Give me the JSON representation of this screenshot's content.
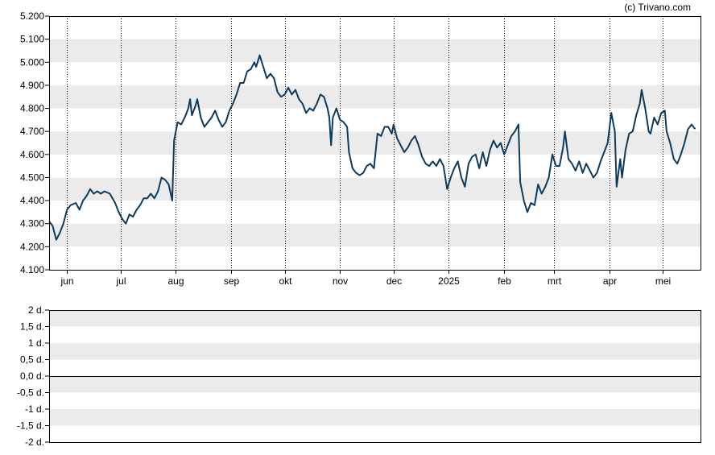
{
  "credit": "(c) Trivano.com",
  "colors": {
    "line": "#0e3a5c",
    "band": "#ebebeb",
    "axis": "#000000",
    "grid": "#000000"
  },
  "chart_data": [
    {
      "type": "line",
      "title": "",
      "xlabel": "",
      "ylabel": "",
      "ylim": [
        4.1,
        5.2
      ],
      "grid": "vertical dotted month lines, horizontal alternating bands",
      "yticks": [
        {
          "v": 4.1,
          "label": "4.100"
        },
        {
          "v": 4.2,
          "label": "4.200"
        },
        {
          "v": 4.3,
          "label": "4.300"
        },
        {
          "v": 4.4,
          "label": "4.400"
        },
        {
          "v": 4.5,
          "label": "4.500"
        },
        {
          "v": 4.6,
          "label": "4.600"
        },
        {
          "v": 4.7,
          "label": "4.700"
        },
        {
          "v": 4.8,
          "label": "4.800"
        },
        {
          "v": 4.9,
          "label": "4.900"
        },
        {
          "v": 5.0,
          "label": "5.000"
        },
        {
          "v": 5.1,
          "label": "5.100"
        },
        {
          "v": 5.2,
          "label": "5.200"
        }
      ],
      "xticks": [
        {
          "d": "2024-06-01",
          "label": "jun"
        },
        {
          "d": "2024-07-01",
          "label": "jul"
        },
        {
          "d": "2024-08-01",
          "label": "aug"
        },
        {
          "d": "2024-09-01",
          "label": "sep"
        },
        {
          "d": "2024-10-01",
          "label": "okt"
        },
        {
          "d": "2024-11-01",
          "label": "nov"
        },
        {
          "d": "2024-12-01",
          "label": "dec"
        },
        {
          "d": "2025-01-01",
          "label": "2025"
        },
        {
          "d": "2025-02-01",
          "label": "feb"
        },
        {
          "d": "2025-03-01",
          "label": "mrt"
        },
        {
          "d": "2025-04-01",
          "label": "apr"
        },
        {
          "d": "2025-05-01",
          "label": "mei"
        }
      ],
      "xrange": [
        "2024-05-22",
        "2025-05-22"
      ],
      "series": [
        {
          "points": [
            [
              "2024-05-22",
              4.31
            ],
            [
              "2024-05-24",
              4.29
            ],
            [
              "2024-05-26",
              4.23
            ],
            [
              "2024-05-28",
              4.26
            ],
            [
              "2024-05-30",
              4.3
            ],
            [
              "2024-06-01",
              4.36
            ],
            [
              "2024-06-03",
              4.38
            ],
            [
              "2024-06-06",
              4.39
            ],
            [
              "2024-06-08",
              4.36
            ],
            [
              "2024-06-10",
              4.4
            ],
            [
              "2024-06-12",
              4.42
            ],
            [
              "2024-06-14",
              4.45
            ],
            [
              "2024-06-16",
              4.43
            ],
            [
              "2024-06-18",
              4.44
            ],
            [
              "2024-06-20",
              4.43
            ],
            [
              "2024-06-22",
              4.44
            ],
            [
              "2024-06-25",
              4.43
            ],
            [
              "2024-06-28",
              4.39
            ],
            [
              "2024-06-30",
              4.35
            ],
            [
              "2024-07-02",
              4.32
            ],
            [
              "2024-07-04",
              4.3
            ],
            [
              "2024-07-06",
              4.34
            ],
            [
              "2024-07-08",
              4.33
            ],
            [
              "2024-07-10",
              4.36
            ],
            [
              "2024-07-12",
              4.38
            ],
            [
              "2024-07-14",
              4.41
            ],
            [
              "2024-07-16",
              4.41
            ],
            [
              "2024-07-18",
              4.43
            ],
            [
              "2024-07-20",
              4.41
            ],
            [
              "2024-07-22",
              4.44
            ],
            [
              "2024-07-24",
              4.5
            ],
            [
              "2024-07-26",
              4.49
            ],
            [
              "2024-07-28",
              4.47
            ],
            [
              "2024-07-30",
              4.4
            ],
            [
              "2024-07-31",
              4.66
            ],
            [
              "2024-08-02",
              4.74
            ],
            [
              "2024-08-04",
              4.73
            ],
            [
              "2024-08-06",
              4.76
            ],
            [
              "2024-08-08",
              4.8
            ],
            [
              "2024-08-09",
              4.84
            ],
            [
              "2024-08-10",
              4.77
            ],
            [
              "2024-08-12",
              4.81
            ],
            [
              "2024-08-13",
              4.84
            ],
            [
              "2024-08-15",
              4.76
            ],
            [
              "2024-08-17",
              4.72
            ],
            [
              "2024-08-19",
              4.74
            ],
            [
              "2024-08-21",
              4.76
            ],
            [
              "2024-08-23",
              4.79
            ],
            [
              "2024-08-25",
              4.75
            ],
            [
              "2024-08-27",
              4.72
            ],
            [
              "2024-08-29",
              4.74
            ],
            [
              "2024-08-31",
              4.79
            ],
            [
              "2024-09-02",
              4.82
            ],
            [
              "2024-09-04",
              4.86
            ],
            [
              "2024-09-06",
              4.91
            ],
            [
              "2024-09-08",
              4.91
            ],
            [
              "2024-09-10",
              4.96
            ],
            [
              "2024-09-12",
              4.97
            ],
            [
              "2024-09-14",
              5.0
            ],
            [
              "2024-09-15",
              4.98
            ],
            [
              "2024-09-17",
              5.03
            ],
            [
              "2024-09-19",
              4.98
            ],
            [
              "2024-09-21",
              4.93
            ],
            [
              "2024-09-23",
              4.95
            ],
            [
              "2024-09-25",
              4.93
            ],
            [
              "2024-09-27",
              4.87
            ],
            [
              "2024-09-29",
              4.85
            ],
            [
              "2024-10-01",
              4.86
            ],
            [
              "2024-10-03",
              4.89
            ],
            [
              "2024-10-05",
              4.86
            ],
            [
              "2024-10-07",
              4.88
            ],
            [
              "2024-10-09",
              4.84
            ],
            [
              "2024-10-11",
              4.82
            ],
            [
              "2024-10-13",
              4.78
            ],
            [
              "2024-10-15",
              4.8
            ],
            [
              "2024-10-17",
              4.79
            ],
            [
              "2024-10-19",
              4.82
            ],
            [
              "2024-10-21",
              4.86
            ],
            [
              "2024-10-23",
              4.85
            ],
            [
              "2024-10-25",
              4.8
            ],
            [
              "2024-10-26",
              4.76
            ],
            [
              "2024-10-27",
              4.64
            ],
            [
              "2024-10-28",
              4.76
            ],
            [
              "2024-10-30",
              4.8
            ],
            [
              "2024-11-01",
              4.75
            ],
            [
              "2024-11-03",
              4.74
            ],
            [
              "2024-11-05",
              4.72
            ],
            [
              "2024-11-06",
              4.61
            ],
            [
              "2024-11-08",
              4.54
            ],
            [
              "2024-11-10",
              4.52
            ],
            [
              "2024-11-12",
              4.51
            ],
            [
              "2024-11-14",
              4.52
            ],
            [
              "2024-11-16",
              4.55
            ],
            [
              "2024-11-18",
              4.56
            ],
            [
              "2024-11-20",
              4.54
            ],
            [
              "2024-11-22",
              4.69
            ],
            [
              "2024-11-24",
              4.68
            ],
            [
              "2024-11-26",
              4.72
            ],
            [
              "2024-11-28",
              4.72
            ],
            [
              "2024-11-30",
              4.69
            ],
            [
              "2024-12-01",
              4.73
            ],
            [
              "2024-12-03",
              4.67
            ],
            [
              "2024-12-05",
              4.64
            ],
            [
              "2024-12-07",
              4.61
            ],
            [
              "2024-12-09",
              4.63
            ],
            [
              "2024-12-11",
              4.66
            ],
            [
              "2024-12-13",
              4.68
            ],
            [
              "2024-12-15",
              4.64
            ],
            [
              "2024-12-17",
              4.59
            ],
            [
              "2024-12-19",
              4.56
            ],
            [
              "2024-12-21",
              4.55
            ],
            [
              "2024-12-23",
              4.57
            ],
            [
              "2024-12-25",
              4.55
            ],
            [
              "2024-12-27",
              4.58
            ],
            [
              "2024-12-29",
              4.55
            ],
            [
              "2024-12-31",
              4.45
            ],
            [
              "2025-01-02",
              4.5
            ],
            [
              "2025-01-04",
              4.54
            ],
            [
              "2025-01-06",
              4.57
            ],
            [
              "2025-01-08",
              4.5
            ],
            [
              "2025-01-10",
              4.46
            ],
            [
              "2025-01-12",
              4.56
            ],
            [
              "2025-01-14",
              4.59
            ],
            [
              "2025-01-16",
              4.6
            ],
            [
              "2025-01-18",
              4.54
            ],
            [
              "2025-01-20",
              4.61
            ],
            [
              "2025-01-22",
              4.55
            ],
            [
              "2025-01-24",
              4.62
            ],
            [
              "2025-01-26",
              4.66
            ],
            [
              "2025-01-28",
              4.63
            ],
            [
              "2025-01-30",
              4.65
            ],
            [
              "2025-02-01",
              4.6
            ],
            [
              "2025-02-03",
              4.64
            ],
            [
              "2025-02-05",
              4.68
            ],
            [
              "2025-02-07",
              4.7
            ],
            [
              "2025-02-09",
              4.73
            ],
            [
              "2025-02-10",
              4.48
            ],
            [
              "2025-02-12",
              4.4
            ],
            [
              "2025-02-14",
              4.35
            ],
            [
              "2025-02-16",
              4.39
            ],
            [
              "2025-02-18",
              4.38
            ],
            [
              "2025-02-20",
              4.47
            ],
            [
              "2025-02-22",
              4.43
            ],
            [
              "2025-02-24",
              4.46
            ],
            [
              "2025-02-26",
              4.5
            ],
            [
              "2025-02-28",
              4.6
            ],
            [
              "2025-03-02",
              4.55
            ],
            [
              "2025-03-04",
              4.55
            ],
            [
              "2025-03-06",
              4.63
            ],
            [
              "2025-03-07",
              4.7
            ],
            [
              "2025-03-09",
              4.58
            ],
            [
              "2025-03-11",
              4.56
            ],
            [
              "2025-03-13",
              4.53
            ],
            [
              "2025-03-15",
              4.57
            ],
            [
              "2025-03-17",
              4.52
            ],
            [
              "2025-03-19",
              4.56
            ],
            [
              "2025-03-21",
              4.53
            ],
            [
              "2025-03-23",
              4.5
            ],
            [
              "2025-03-25",
              4.52
            ],
            [
              "2025-03-27",
              4.57
            ],
            [
              "2025-03-29",
              4.61
            ],
            [
              "2025-03-31",
              4.65
            ],
            [
              "2025-04-02",
              4.78
            ],
            [
              "2025-04-04",
              4.7
            ],
            [
              "2025-04-05",
              4.46
            ],
            [
              "2025-04-07",
              4.58
            ],
            [
              "2025-04-08",
              4.5
            ],
            [
              "2025-04-10",
              4.62
            ],
            [
              "2025-04-12",
              4.69
            ],
            [
              "2025-04-14",
              4.7
            ],
            [
              "2025-04-16",
              4.77
            ],
            [
              "2025-04-18",
              4.82
            ],
            [
              "2025-04-19",
              4.88
            ],
            [
              "2025-04-21",
              4.8
            ],
            [
              "2025-04-23",
              4.7
            ],
            [
              "2025-04-24",
              4.69
            ],
            [
              "2025-04-26",
              4.76
            ],
            [
              "2025-04-28",
              4.73
            ],
            [
              "2025-04-30",
              4.78
            ],
            [
              "2025-05-02",
              4.79
            ],
            [
              "2025-05-03",
              4.7
            ],
            [
              "2025-05-05",
              4.65
            ],
            [
              "2025-05-07",
              4.58
            ],
            [
              "2025-05-09",
              4.56
            ],
            [
              "2025-05-11",
              4.6
            ],
            [
              "2025-05-13",
              4.65
            ],
            [
              "2025-05-15",
              4.71
            ],
            [
              "2025-05-17",
              4.73
            ],
            [
              "2025-05-19",
              4.71
            ]
          ]
        }
      ]
    },
    {
      "type": "line",
      "title": "",
      "xlabel": "",
      "ylabel": "",
      "ylim": [
        -2,
        2
      ],
      "yticks": [
        {
          "v": 2,
          "label": "2 d."
        },
        {
          "v": 1.5,
          "label": "1,5 d."
        },
        {
          "v": 1,
          "label": "1 d."
        },
        {
          "v": 0.5,
          "label": "0,5 d."
        },
        {
          "v": 0,
          "label": "0,0 d."
        },
        {
          "v": -0.5,
          "label": "-0,5 d."
        },
        {
          "v": -1,
          "label": "-1 d."
        },
        {
          "v": -1.5,
          "label": "-1,5 d."
        },
        {
          "v": -2,
          "label": "-2 d."
        }
      ],
      "series": []
    }
  ]
}
